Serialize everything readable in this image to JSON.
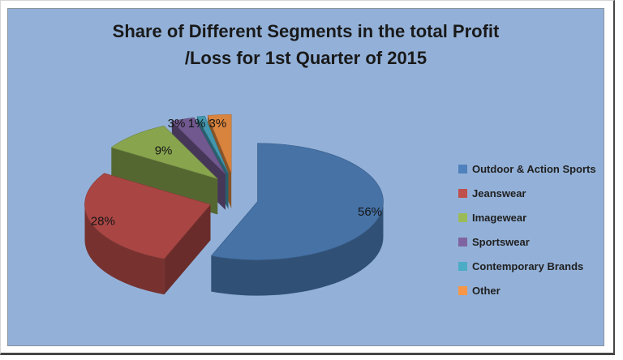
{
  "title_lines": [
    "Share of Different Segments in the total Profit",
    "/Loss for 1st Quarter of 2015"
  ],
  "chart_data": {
    "type": "pie",
    "style": "3d-exploded",
    "title": "Share of Different Segments in the total Profit /Loss for 1st Quarter of 2015",
    "categories": [
      "Outdoor & Action Sports",
      "Jeanswear",
      "Imagewear",
      "Sportswear",
      "Contemporary Brands",
      "Other"
    ],
    "values": [
      56,
      28,
      9,
      3,
      1,
      3
    ],
    "labels": [
      "56%",
      "28%",
      "9%",
      "3%",
      "1%",
      "3%"
    ],
    "colors": [
      "#4F81BD",
      "#C0504D",
      "#9BBB59",
      "#8064A2",
      "#4BACC6",
      "#F79646"
    ],
    "legend_position": "right",
    "background_color": "#93B1D8",
    "start_angle_deg": 0,
    "rotation": "clockwise-from-top"
  }
}
